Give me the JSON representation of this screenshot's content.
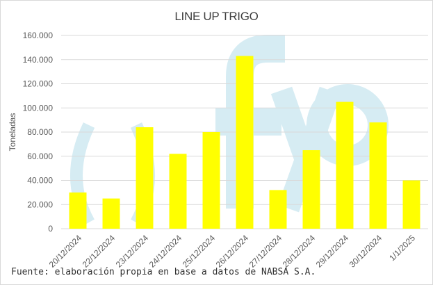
{
  "chart_data": {
    "type": "bar",
    "title": "LINE UP TRIGO",
    "xlabel": "",
    "ylabel": "Toneladas",
    "categories": [
      "20/12/2024",
      "22/12/2024",
      "23/12/2024",
      "24/12/2024",
      "25/12/2024",
      "26/12/2024",
      "27/12/2024",
      "28/12/2024",
      "29/12/2024",
      "30/12/2024",
      "1/1/2025"
    ],
    "values": [
      30000,
      25000,
      84000,
      62000,
      80000,
      143000,
      32000,
      65000,
      105000,
      88000,
      40000
    ],
    "ylim": [
      0,
      160000
    ],
    "yticks": [
      0,
      20000,
      40000,
      60000,
      80000,
      100000,
      120000,
      140000,
      160000
    ],
    "ytick_labels": [
      "0",
      "20.000",
      "40.000",
      "60.000",
      "80.000",
      "100.000",
      "120.000",
      "140.000",
      "160.000"
    ],
    "grid": true,
    "legend": "none",
    "bar_color": "#ffff00"
  },
  "source_note": "Fuente: elaboración propia en base a datos de NABSA S.A.",
  "watermark": {
    "color": "#d6ecf3"
  }
}
